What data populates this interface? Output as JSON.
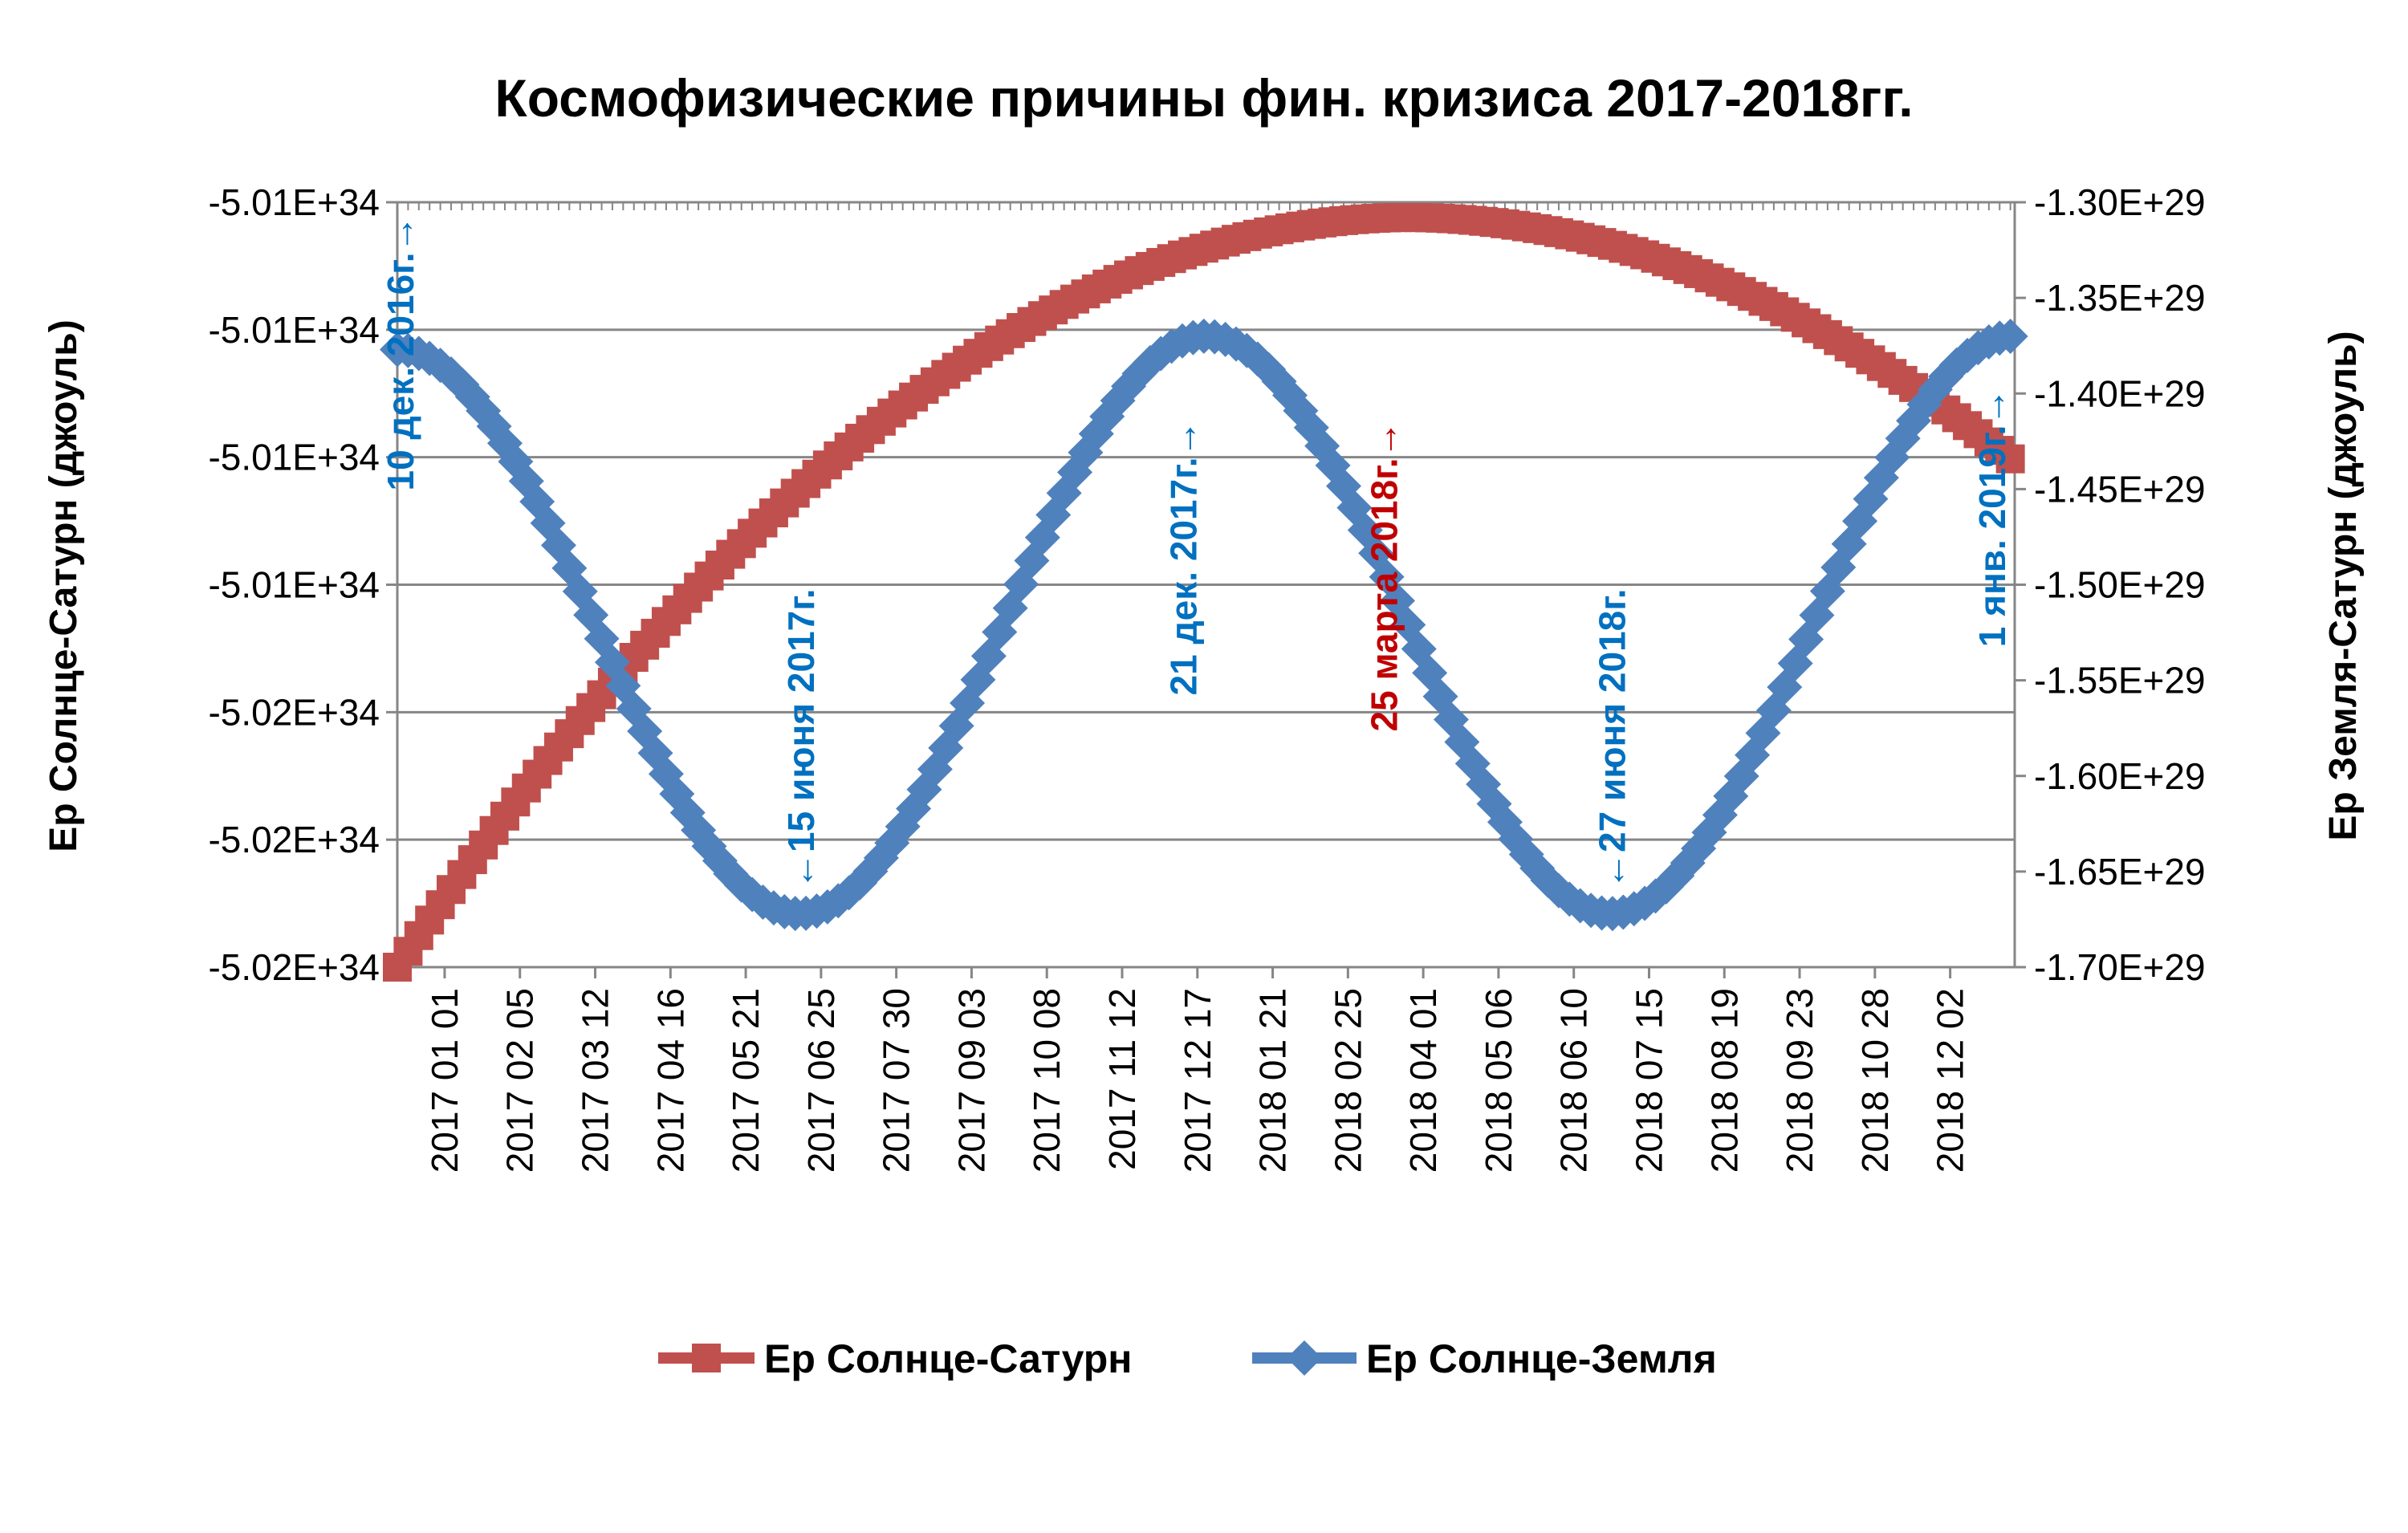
{
  "chart_data": {
    "type": "line",
    "title": "Космофизические причины фин. кризиса 2017-2018гг.",
    "y_left_label": "Ер Солнце-Сатурн (джоуль)",
    "y_right_label": "Ер Земля-Сатурн (джоуль)",
    "y_left_ticks": [
      "-5.01E+34",
      "-5.01E+34",
      "-5.01E+34",
      "-5.01E+34",
      "-5.02E+34",
      "-5.02E+34",
      "-5.02E+34"
    ],
    "y_right_ticks": [
      "-1.30E+29",
      "-1.35E+29",
      "-1.40E+29",
      "-1.45E+29",
      "-1.50E+29",
      "-1.55E+29",
      "-1.60E+29",
      "-1.65E+29",
      "-1.70E+29"
    ],
    "y_right_range": [
      -1.7e+29,
      -1.3e+29
    ],
    "x_range": [
      "2016-12-10",
      "2019-01-01"
    ],
    "x_ticks": [
      "2017 01 01",
      "2017 02 05",
      "2017 03 12",
      "2017 04 16",
      "2017 05 21",
      "2017 06 25",
      "2017 07 30",
      "2017 09 03",
      "2017 10 08",
      "2017 11 12",
      "2017 12 17",
      "2018 01 21",
      "2018 02 25",
      "2018 04 01",
      "2018 05 06",
      "2018 06 10",
      "2018 07 15",
      "2018 08 19",
      "2018 09 23",
      "2018 10 28",
      "2018 12 02"
    ],
    "x_tick_dates": [
      "2017-01-01",
      "2017-02-05",
      "2017-03-12",
      "2017-04-16",
      "2017-05-21",
      "2017-06-25",
      "2017-07-30",
      "2017-09-03",
      "2017-10-08",
      "2017-11-12",
      "2017-12-17",
      "2018-01-21",
      "2018-02-25",
      "2018-04-01",
      "2018-05-06",
      "2018-06-10",
      "2018-07-15",
      "2018-08-19",
      "2018-09-23",
      "2018-10-28",
      "2018-12-02"
    ],
    "grid": "horizontal",
    "legend_position": "bottom",
    "series": [
      {
        "name": "Ер Солнце-Сатурн",
        "axis": "left",
        "color": "#c0504d",
        "marker": "square",
        "level": {
          "start": 0.0,
          "peak": 0.98,
          "end": 0.66
        },
        "peak_date": "2018-03-25"
      },
      {
        "name": "Ер Солнце-Земля",
        "axis": "right",
        "color": "#4f81bd",
        "marker": "diamond",
        "extremes": [
          {
            "date": "2016-12-10",
            "value": -1.377e+29
          },
          {
            "date": "2017-06-15",
            "value": -1.672e+29
          },
          {
            "date": "2017-12-21",
            "value": -1.37e+29
          },
          {
            "date": "2018-06-27",
            "value": -1.672e+29
          },
          {
            "date": "2019-01-01",
            "value": -1.37e+29
          }
        ]
      }
    ],
    "annotations": [
      {
        "text": "10 дек. 2016г.→",
        "color": "#0070c0",
        "date": "2016-12-10"
      },
      {
        "text": "←15 июня 2017г.",
        "color": "#0070c0",
        "date": "2017-06-15"
      },
      {
        "text": "21 дек. 2017г.→",
        "color": "#0070c0",
        "date": "2017-12-21"
      },
      {
        "text": "25 марта 2018г.→",
        "color": "#c00000",
        "date": "2018-03-25"
      },
      {
        "text": "←27 июня 2018г.",
        "color": "#0070c0",
        "date": "2018-06-27"
      },
      {
        "text": "1 янв. 2019г.→",
        "color": "#0070c0",
        "date": "2019-01-01"
      }
    ]
  }
}
